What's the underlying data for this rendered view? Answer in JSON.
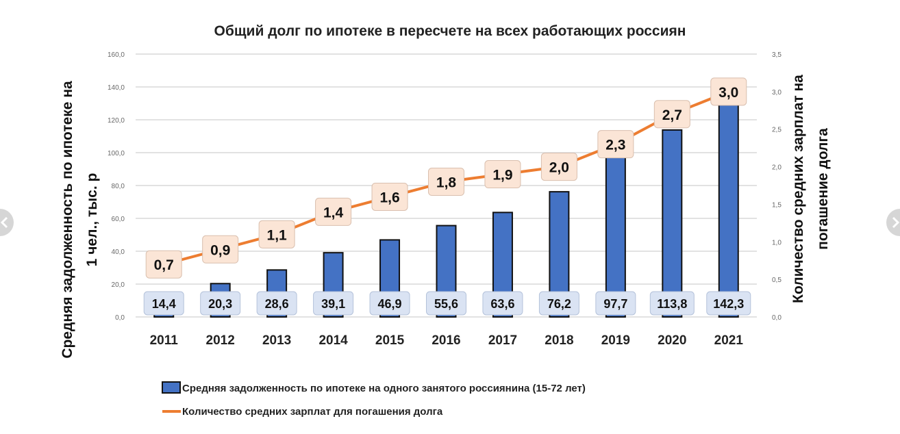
{
  "chart_data": {
    "type": "bar+line",
    "title": "Общий долг по ипотеке в пересчете на всех работающих россиян",
    "categories": [
      "2011",
      "2012",
      "2013",
      "2014",
      "2015",
      "2016",
      "2017",
      "2018",
      "2019",
      "2020",
      "2021"
    ],
    "series": [
      {
        "name": "Средняя задолженность по ипотеке на одного занятого россиянина (15-72 лет)",
        "type": "bar",
        "axis": "left",
        "color": "#4472c4",
        "values": [
          14.4,
          20.3,
          28.6,
          39.1,
          46.9,
          55.6,
          63.6,
          76.2,
          97.7,
          113.8,
          142.3
        ],
        "labels": [
          "14,4",
          "20,3",
          "28,6",
          "39,1",
          "46,9",
          "55,6",
          "63,6",
          "76,2",
          "97,7",
          "113,8",
          "142,3"
        ]
      },
      {
        "name": "Количество средних зарплат для погашения долга",
        "type": "line",
        "axis": "right",
        "color": "#ed7d31",
        "values": [
          0.7,
          0.9,
          1.1,
          1.4,
          1.6,
          1.8,
          1.9,
          2.0,
          2.3,
          2.7,
          3.0
        ],
        "labels": [
          "0,7",
          "0,9",
          "1,1",
          "1,4",
          "1,6",
          "1,8",
          "1,9",
          "2,0",
          "2,3",
          "2,7",
          "3,0"
        ]
      }
    ],
    "ylabel": "Средняя задолженность по ипотеке на 1 чел., тыс. р",
    "ylabel_lines": [
      "Средняя задолженность по ипотеке на",
      "1 чел., тыс. р"
    ],
    "y2label": "Количество средних зарплат на погашение долга",
    "y2label_lines": [
      "Количество средних зарплат на",
      "погашение долга"
    ],
    "ylim": [
      0,
      160
    ],
    "y_ticks": [
      "0,0",
      "20,0",
      "40,0",
      "60,0",
      "80,0",
      "100,0",
      "120,0",
      "140,0",
      "160,0"
    ],
    "y2lim": [
      0,
      3.5
    ],
    "y2_ticks": [
      "0,0",
      "0,5",
      "1,0",
      "1,5",
      "2,0",
      "2,5",
      "3,0",
      "3,5"
    ],
    "grid": true,
    "legend_position": "bottom"
  },
  "nav": {
    "prev_icon": "chevron-left-icon",
    "next_icon": "chevron-right-icon"
  }
}
